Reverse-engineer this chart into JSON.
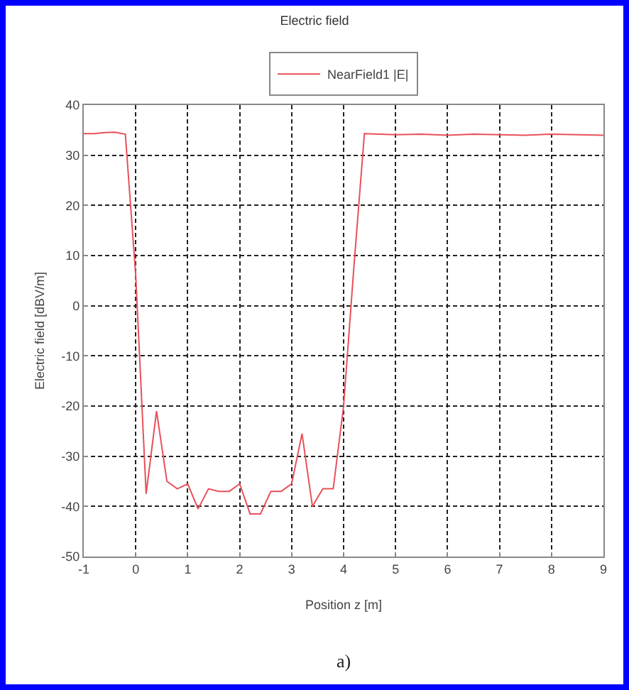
{
  "chart_data": {
    "type": "line",
    "title": "Electric field",
    "xlabel": "Position z [m]",
    "ylabel": "Electric field [dBV/m]",
    "annotations": [
      "a)"
    ],
    "x": [
      -1,
      -0.8,
      -0.6,
      -0.4,
      -0.2,
      0,
      0.2,
      0.4,
      0.6,
      0.8,
      1,
      1.2,
      1.4,
      1.6,
      1.8,
      2,
      2.2,
      2.4,
      2.6,
      2.8,
      3,
      3.2,
      3.4,
      3.6,
      3.8,
      4,
      4.2,
      4.4,
      5,
      5.5,
      6,
      6.5,
      7,
      7.5,
      8,
      8.5,
      9
    ],
    "series": [
      {
        "name": "NearField1 |E|",
        "color": "#e8505a",
        "values": [
          34.3,
          34.3,
          34.5,
          34.6,
          34.2,
          6,
          -37.5,
          -21,
          -35,
          -36.5,
          -35.5,
          -40.5,
          -36.5,
          -37,
          -37,
          -35.5,
          -41.5,
          -41.5,
          -37,
          -37,
          -35.5,
          -25.5,
          -40,
          -36.5,
          -36.5,
          -20,
          8,
          34.3,
          34.1,
          34.2,
          34.0,
          34.2,
          34.1,
          34.0,
          34.2,
          34.1,
          34.0
        ]
      }
    ],
    "xlim": [
      -1,
      9
    ],
    "xticks": [
      -1,
      0,
      1,
      2,
      3,
      4,
      5,
      6,
      7,
      8,
      9
    ],
    "ylim": [
      -50,
      40
    ],
    "yticks": [
      -50,
      -40,
      -30,
      -20,
      -10,
      0,
      10,
      20,
      30,
      40
    ],
    "grid": true,
    "legend": "top",
    "line_style": "solid",
    "marker": "none"
  }
}
